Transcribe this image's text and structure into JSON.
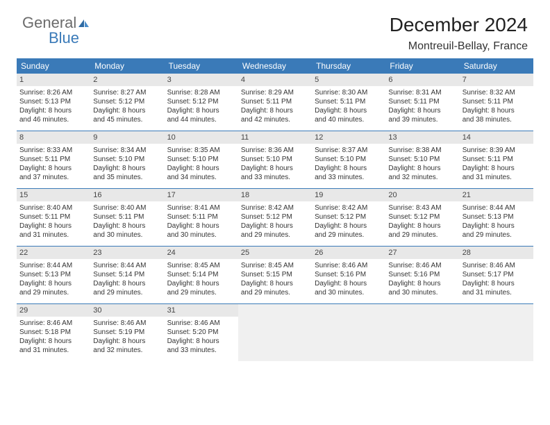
{
  "logo": {
    "text1": "General",
    "text2": "Blue",
    "color_general": "#6b6b6b",
    "color_blue": "#3a7ab8"
  },
  "title": "December 2024",
  "location": "Montreuil-Bellay, France",
  "colors": {
    "header_bg": "#3a7ab8",
    "header_fg": "#ffffff",
    "daynum_bg": "#e8e8e8",
    "border": "#3a7ab8"
  },
  "day_names": [
    "Sunday",
    "Monday",
    "Tuesday",
    "Wednesday",
    "Thursday",
    "Friday",
    "Saturday"
  ],
  "weeks": [
    [
      {
        "n": "1",
        "sr": "Sunrise: 8:26 AM",
        "ss": "Sunset: 5:13 PM",
        "dl1": "Daylight: 8 hours",
        "dl2": "and 46 minutes."
      },
      {
        "n": "2",
        "sr": "Sunrise: 8:27 AM",
        "ss": "Sunset: 5:12 PM",
        "dl1": "Daylight: 8 hours",
        "dl2": "and 45 minutes."
      },
      {
        "n": "3",
        "sr": "Sunrise: 8:28 AM",
        "ss": "Sunset: 5:12 PM",
        "dl1": "Daylight: 8 hours",
        "dl2": "and 44 minutes."
      },
      {
        "n": "4",
        "sr": "Sunrise: 8:29 AM",
        "ss": "Sunset: 5:11 PM",
        "dl1": "Daylight: 8 hours",
        "dl2": "and 42 minutes."
      },
      {
        "n": "5",
        "sr": "Sunrise: 8:30 AM",
        "ss": "Sunset: 5:11 PM",
        "dl1": "Daylight: 8 hours",
        "dl2": "and 40 minutes."
      },
      {
        "n": "6",
        "sr": "Sunrise: 8:31 AM",
        "ss": "Sunset: 5:11 PM",
        "dl1": "Daylight: 8 hours",
        "dl2": "and 39 minutes."
      },
      {
        "n": "7",
        "sr": "Sunrise: 8:32 AM",
        "ss": "Sunset: 5:11 PM",
        "dl1": "Daylight: 8 hours",
        "dl2": "and 38 minutes."
      }
    ],
    [
      {
        "n": "8",
        "sr": "Sunrise: 8:33 AM",
        "ss": "Sunset: 5:11 PM",
        "dl1": "Daylight: 8 hours",
        "dl2": "and 37 minutes."
      },
      {
        "n": "9",
        "sr": "Sunrise: 8:34 AM",
        "ss": "Sunset: 5:10 PM",
        "dl1": "Daylight: 8 hours",
        "dl2": "and 35 minutes."
      },
      {
        "n": "10",
        "sr": "Sunrise: 8:35 AM",
        "ss": "Sunset: 5:10 PM",
        "dl1": "Daylight: 8 hours",
        "dl2": "and 34 minutes."
      },
      {
        "n": "11",
        "sr": "Sunrise: 8:36 AM",
        "ss": "Sunset: 5:10 PM",
        "dl1": "Daylight: 8 hours",
        "dl2": "and 33 minutes."
      },
      {
        "n": "12",
        "sr": "Sunrise: 8:37 AM",
        "ss": "Sunset: 5:10 PM",
        "dl1": "Daylight: 8 hours",
        "dl2": "and 33 minutes."
      },
      {
        "n": "13",
        "sr": "Sunrise: 8:38 AM",
        "ss": "Sunset: 5:10 PM",
        "dl1": "Daylight: 8 hours",
        "dl2": "and 32 minutes."
      },
      {
        "n": "14",
        "sr": "Sunrise: 8:39 AM",
        "ss": "Sunset: 5:11 PM",
        "dl1": "Daylight: 8 hours",
        "dl2": "and 31 minutes."
      }
    ],
    [
      {
        "n": "15",
        "sr": "Sunrise: 8:40 AM",
        "ss": "Sunset: 5:11 PM",
        "dl1": "Daylight: 8 hours",
        "dl2": "and 31 minutes."
      },
      {
        "n": "16",
        "sr": "Sunrise: 8:40 AM",
        "ss": "Sunset: 5:11 PM",
        "dl1": "Daylight: 8 hours",
        "dl2": "and 30 minutes."
      },
      {
        "n": "17",
        "sr": "Sunrise: 8:41 AM",
        "ss": "Sunset: 5:11 PM",
        "dl1": "Daylight: 8 hours",
        "dl2": "and 30 minutes."
      },
      {
        "n": "18",
        "sr": "Sunrise: 8:42 AM",
        "ss": "Sunset: 5:12 PM",
        "dl1": "Daylight: 8 hours",
        "dl2": "and 29 minutes."
      },
      {
        "n": "19",
        "sr": "Sunrise: 8:42 AM",
        "ss": "Sunset: 5:12 PM",
        "dl1": "Daylight: 8 hours",
        "dl2": "and 29 minutes."
      },
      {
        "n": "20",
        "sr": "Sunrise: 8:43 AM",
        "ss": "Sunset: 5:12 PM",
        "dl1": "Daylight: 8 hours",
        "dl2": "and 29 minutes."
      },
      {
        "n": "21",
        "sr": "Sunrise: 8:44 AM",
        "ss": "Sunset: 5:13 PM",
        "dl1": "Daylight: 8 hours",
        "dl2": "and 29 minutes."
      }
    ],
    [
      {
        "n": "22",
        "sr": "Sunrise: 8:44 AM",
        "ss": "Sunset: 5:13 PM",
        "dl1": "Daylight: 8 hours",
        "dl2": "and 29 minutes."
      },
      {
        "n": "23",
        "sr": "Sunrise: 8:44 AM",
        "ss": "Sunset: 5:14 PM",
        "dl1": "Daylight: 8 hours",
        "dl2": "and 29 minutes."
      },
      {
        "n": "24",
        "sr": "Sunrise: 8:45 AM",
        "ss": "Sunset: 5:14 PM",
        "dl1": "Daylight: 8 hours",
        "dl2": "and 29 minutes."
      },
      {
        "n": "25",
        "sr": "Sunrise: 8:45 AM",
        "ss": "Sunset: 5:15 PM",
        "dl1": "Daylight: 8 hours",
        "dl2": "and 29 minutes."
      },
      {
        "n": "26",
        "sr": "Sunrise: 8:46 AM",
        "ss": "Sunset: 5:16 PM",
        "dl1": "Daylight: 8 hours",
        "dl2": "and 30 minutes."
      },
      {
        "n": "27",
        "sr": "Sunrise: 8:46 AM",
        "ss": "Sunset: 5:16 PM",
        "dl1": "Daylight: 8 hours",
        "dl2": "and 30 minutes."
      },
      {
        "n": "28",
        "sr": "Sunrise: 8:46 AM",
        "ss": "Sunset: 5:17 PM",
        "dl1": "Daylight: 8 hours",
        "dl2": "and 31 minutes."
      }
    ],
    [
      {
        "n": "29",
        "sr": "Sunrise: 8:46 AM",
        "ss": "Sunset: 5:18 PM",
        "dl1": "Daylight: 8 hours",
        "dl2": "and 31 minutes."
      },
      {
        "n": "30",
        "sr": "Sunrise: 8:46 AM",
        "ss": "Sunset: 5:19 PM",
        "dl1": "Daylight: 8 hours",
        "dl2": "and 32 minutes."
      },
      {
        "n": "31",
        "sr": "Sunrise: 8:46 AM",
        "ss": "Sunset: 5:20 PM",
        "dl1": "Daylight: 8 hours",
        "dl2": "and 33 minutes."
      },
      null,
      null,
      null,
      null
    ]
  ]
}
